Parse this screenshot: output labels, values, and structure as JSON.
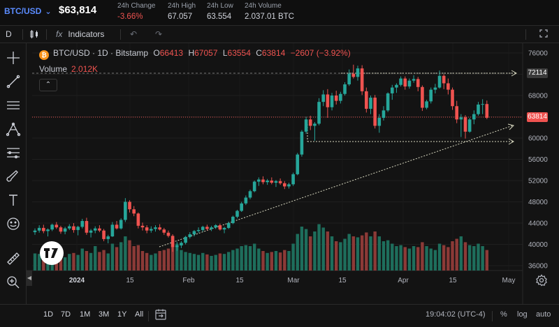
{
  "header": {
    "symbol": "BTC/USD",
    "price": "$63,814",
    "stats": [
      {
        "label": "24h Change",
        "value": "-3.66%",
        "negative": true
      },
      {
        "label": "24h High",
        "value": "67.057",
        "negative": false
      },
      {
        "label": "24h Low",
        "value": "63.554",
        "negative": false
      },
      {
        "label": "24h Volume",
        "value": "2.037.01 BTC",
        "negative": false
      }
    ]
  },
  "toolbar": {
    "interval": "D",
    "indicators_label": "Indicators"
  },
  "legend": {
    "pair": "BTC/USD",
    "interval": "1D",
    "exchange": "Bitstamp",
    "o_label": "O",
    "o": "66413",
    "h_label": "H",
    "h": "67057",
    "l_label": "L",
    "l": "63554",
    "c_label": "C",
    "c": "63814",
    "change": "−2607",
    "change_pct": "(−3.92%)",
    "volume_label": "Volume",
    "volume": "2.012K"
  },
  "price_labels": {
    "resistance": "72114",
    "last": "63814"
  },
  "bottom": {
    "ranges": [
      "1D",
      "7D",
      "1M",
      "3M",
      "1Y",
      "All"
    ],
    "clock": "19:04:02 (UTC-4)",
    "percent": "%",
    "log": "log",
    "auto": "auto"
  },
  "colors": {
    "up": "#26a69a",
    "down": "#ef5350",
    "up_volume": "#1e6e5c",
    "down_volume": "#8c3a37",
    "accent": "#5b8cff"
  },
  "icons": [
    "crosshair-icon",
    "trend-line-icon",
    "horizontal-lines-icon",
    "pitchfork-icon",
    "fib-icon",
    "brush-icon",
    "text-icon",
    "emoji-icon",
    "ruler-icon",
    "zoom-icon",
    "magnet-icon",
    "undo-icon",
    "redo-icon",
    "fullscreen-icon",
    "settings-icon",
    "calendar-range-icon"
  ],
  "chart_data": {
    "type": "candlestick",
    "y_ticks": [
      76000,
      72000,
      68000,
      64000,
      60000,
      56000,
      52000,
      48000,
      44000,
      40000,
      36000
    ],
    "ylim": [
      35000,
      77500
    ],
    "x_labels": [
      "2024",
      "15",
      "Feb",
      "15",
      "Mar",
      "15",
      "Apr",
      "15",
      "May"
    ],
    "candles": [
      [
        42300,
        43000,
        41800,
        42600,
        0.35
      ],
      [
        42600,
        43600,
        42200,
        43100,
        0.34
      ],
      [
        43100,
        43700,
        42100,
        42500,
        0.4
      ],
      [
        42500,
        43000,
        41500,
        42800,
        0.32
      ],
      [
        42800,
        43900,
        42500,
        43700,
        0.3
      ],
      [
        43700,
        44200,
        42900,
        43200,
        0.28
      ],
      [
        43200,
        43500,
        42000,
        42400,
        0.3
      ],
      [
        42400,
        43300,
        41900,
        43000,
        0.27
      ],
      [
        43000,
        43800,
        42700,
        43400,
        0.34
      ],
      [
        43400,
        44000,
        42200,
        42700,
        0.36
      ],
      [
        42700,
        43500,
        41700,
        43300,
        0.32
      ],
      [
        43300,
        44800,
        43000,
        44400,
        0.45
      ],
      [
        44400,
        45000,
        41800,
        42200,
        0.4
      ],
      [
        42200,
        42900,
        41300,
        42600,
        0.36
      ],
      [
        42600,
        43400,
        42100,
        43000,
        0.5
      ],
      [
        43000,
        43600,
        42300,
        42600,
        0.38
      ],
      [
        42600,
        42900,
        40600,
        41000,
        0.42
      ],
      [
        41000,
        41800,
        40200,
        41500,
        0.35
      ],
      [
        41500,
        44200,
        41400,
        43700,
        0.55
      ],
      [
        43700,
        44400,
        42800,
        43000,
        0.48
      ],
      [
        43000,
        44900,
        42800,
        44600,
        0.58
      ],
      [
        44600,
        48700,
        44200,
        48000,
        0.7
      ],
      [
        48000,
        48300,
        46000,
        46600,
        0.62
      ],
      [
        46600,
        47200,
        45300,
        45800,
        0.5
      ],
      [
        45800,
        46000,
        43000,
        43500,
        0.52
      ],
      [
        43500,
        44100,
        42600,
        43200,
        0.4
      ],
      [
        43200,
        43600,
        42100,
        42600,
        0.36
      ],
      [
        42600,
        43400,
        42200,
        42900,
        0.32
      ],
      [
        42900,
        43600,
        42400,
        43200,
        0.35
      ],
      [
        43200,
        43800,
        42600,
        42800,
        0.4
      ],
      [
        42800,
        43100,
        41800,
        42200,
        0.42
      ],
      [
        42200,
        42600,
        41300,
        41600,
        0.45
      ],
      [
        41600,
        41900,
        38600,
        39500,
        0.5
      ],
      [
        39500,
        40500,
        38800,
        39800,
        0.55
      ],
      [
        39800,
        40600,
        39300,
        40300,
        0.42
      ],
      [
        40300,
        41600,
        40000,
        41400,
        0.38
      ],
      [
        41400,
        42300,
        41100,
        41900,
        0.36
      ],
      [
        41900,
        42700,
        41500,
        42500,
        0.34
      ],
      [
        42500,
        43200,
        42200,
        42700,
        0.32
      ],
      [
        42700,
        43500,
        42400,
        43300,
        0.36
      ],
      [
        43300,
        43700,
        42600,
        42900,
        0.33
      ],
      [
        42900,
        43500,
        42500,
        43200,
        0.3
      ],
      [
        43200,
        43800,
        42900,
        43600,
        0.32
      ],
      [
        43600,
        43900,
        42600,
        42800,
        0.35
      ],
      [
        42800,
        43300,
        42100,
        43100,
        0.34
      ],
      [
        43100,
        44300,
        42900,
        44000,
        0.38
      ],
      [
        44000,
        45400,
        43800,
        45200,
        0.42
      ],
      [
        45200,
        46500,
        44900,
        46300,
        0.45
      ],
      [
        46300,
        48000,
        46100,
        47700,
        0.5
      ],
      [
        47700,
        49200,
        47400,
        48800,
        0.52
      ],
      [
        48800,
        50300,
        48500,
        50000,
        0.5
      ],
      [
        50000,
        52000,
        49800,
        51800,
        0.55
      ],
      [
        51800,
        52600,
        51000,
        52200,
        0.45
      ],
      [
        52200,
        52800,
        51300,
        51700,
        0.4
      ],
      [
        51700,
        52300,
        51200,
        52000,
        0.36
      ],
      [
        52000,
        52600,
        51300,
        51600,
        0.38
      ],
      [
        51600,
        52100,
        50800,
        51900,
        0.4
      ],
      [
        51900,
        52400,
        51200,
        51500,
        0.37
      ],
      [
        51500,
        51900,
        50400,
        50900,
        0.42
      ],
      [
        50900,
        51600,
        50500,
        51300,
        0.4
      ],
      [
        51300,
        53500,
        51000,
        53200,
        0.55
      ],
      [
        53200,
        57200,
        53000,
        56900,
        0.75
      ],
      [
        56900,
        61500,
        56500,
        61200,
        0.9
      ],
      [
        61200,
        64000,
        60800,
        63500,
        0.85
      ],
      [
        63500,
        64200,
        61500,
        62300,
        0.7
      ],
      [
        62300,
        63000,
        59500,
        62700,
        0.8
      ],
      [
        62700,
        67500,
        62400,
        66800,
        0.95
      ],
      [
        66800,
        69000,
        66000,
        68200,
        0.88
      ],
      [
        68200,
        69200,
        63800,
        65800,
        0.8
      ],
      [
        65800,
        68500,
        65200,
        68000,
        0.7
      ],
      [
        68000,
        68900,
        66300,
        67000,
        0.6
      ],
      [
        67000,
        68700,
        66500,
        68300,
        0.58
      ],
      [
        68300,
        70500,
        68000,
        70100,
        0.65
      ],
      [
        70100,
        72900,
        69800,
        72100,
        0.75
      ],
      [
        72100,
        73800,
        71200,
        71500,
        0.7
      ],
      [
        71500,
        73600,
        70800,
        73100,
        0.68
      ],
      [
        73100,
        73700,
        68100,
        68800,
        0.72
      ],
      [
        68800,
        69500,
        64800,
        65500,
        0.78
      ],
      [
        65500,
        68000,
        64500,
        67600,
        0.7
      ],
      [
        67600,
        68100,
        61800,
        62300,
        0.8
      ],
      [
        62300,
        64500,
        61000,
        63800,
        0.7
      ],
      [
        63800,
        66000,
        63300,
        65200,
        0.6
      ],
      [
        65200,
        68600,
        64900,
        68400,
        0.62
      ],
      [
        68400,
        70000,
        67200,
        69500,
        0.55
      ],
      [
        69500,
        70300,
        68500,
        70000,
        0.5
      ],
      [
        70000,
        71600,
        69700,
        71200,
        0.52
      ],
      [
        71200,
        71600,
        69100,
        69700,
        0.48
      ],
      [
        69700,
        71200,
        69300,
        70800,
        0.45
      ],
      [
        70800,
        71800,
        70400,
        71100,
        0.5
      ],
      [
        71100,
        71500,
        68800,
        69600,
        0.48
      ],
      [
        69600,
        69900,
        65100,
        65700,
        0.58
      ],
      [
        65700,
        67200,
        65400,
        66900,
        0.5
      ],
      [
        66900,
        69500,
        66500,
        69100,
        0.45
      ],
      [
        69100,
        70200,
        68400,
        69500,
        0.42
      ],
      [
        69500,
        72700,
        69300,
        71700,
        0.55
      ],
      [
        71700,
        72000,
        69200,
        70300,
        0.52
      ],
      [
        70300,
        71200,
        68200,
        69100,
        0.48
      ],
      [
        69100,
        69500,
        65300,
        66000,
        0.6
      ],
      [
        66000,
        67000,
        62800,
        63500,
        0.65
      ],
      [
        63500,
        64500,
        60200,
        63900,
        0.7
      ],
      [
        63900,
        64300,
        59900,
        61200,
        0.58
      ],
      [
        61200,
        63800,
        61000,
        63500,
        0.52
      ],
      [
        63500,
        65200,
        62600,
        64500,
        0.5
      ],
      [
        64500,
        66800,
        64200,
        66300,
        0.55
      ],
      [
        66300,
        67300,
        64500,
        66400,
        0.5
      ],
      [
        66400,
        67057,
        63554,
        63814,
        0.42
      ]
    ],
    "trendline": [
      [
        41000,
        "start"
      ],
      [
        62500,
        "end"
      ]
    ],
    "resistance_level": 72114
  }
}
